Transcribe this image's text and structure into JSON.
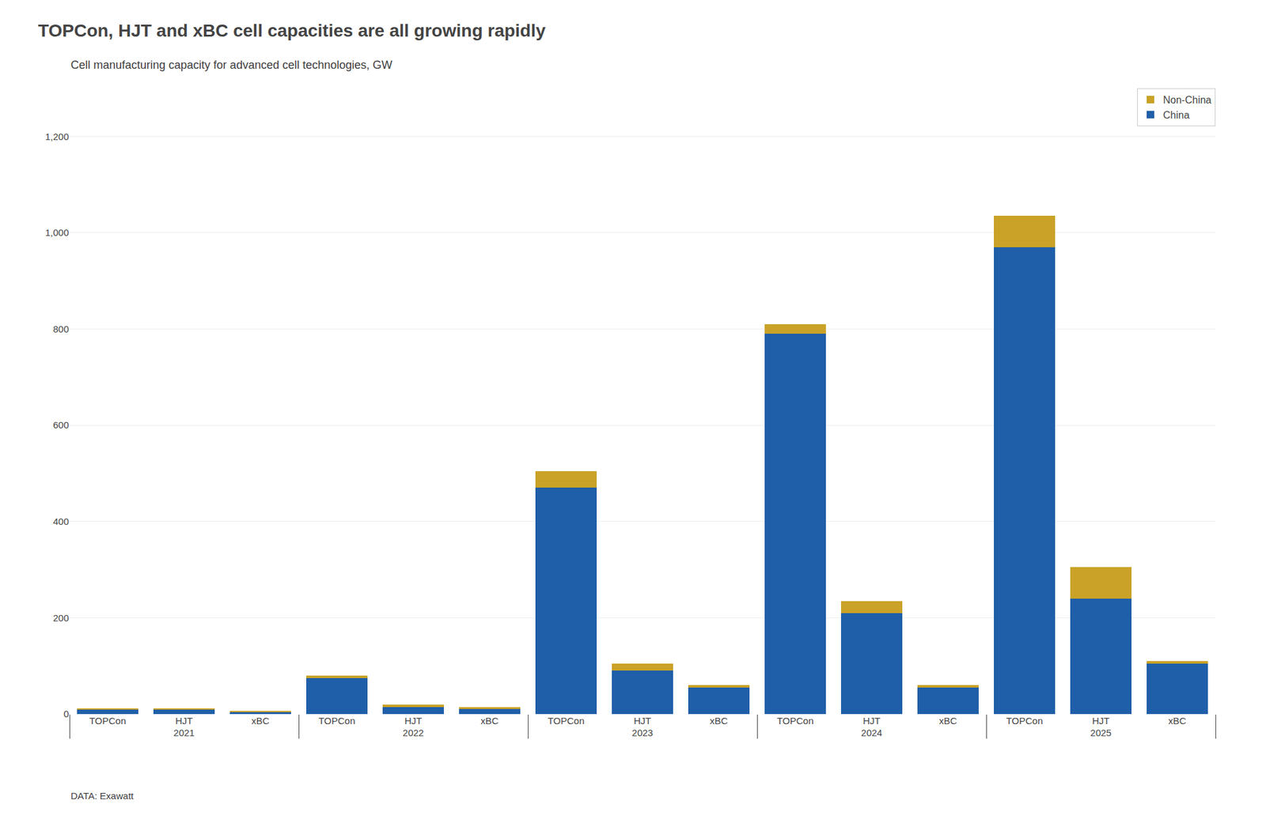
{
  "chart_data": {
    "type": "bar",
    "title": "TOPCon, HJT and xBC cell capacities are all growing rapidly",
    "subtitle": "Cell manufacturing capacity for advanced cell technologies, GW",
    "footer": "DATA: Exawatt",
    "groups": [
      "2021",
      "2022",
      "2023",
      "2024",
      "2025"
    ],
    "categories": [
      "TOPCon",
      "HJT",
      "xBC",
      "TOPCon",
      "HJT",
      "xBC",
      "TOPCon",
      "HJT",
      "xBC",
      "TOPCon",
      "HJT",
      "xBC",
      "TOPCon",
      "HJT",
      "xBC"
    ],
    "series": [
      {
        "name": "China",
        "color": "#1F5EA8",
        "values": [
          10,
          10,
          5,
          75,
          15,
          10,
          470,
          90,
          55,
          790,
          210,
          55,
          970,
          240,
          105
        ]
      },
      {
        "name": "Non-China",
        "color": "#C9A227",
        "values": [
          2,
          2,
          2,
          5,
          5,
          5,
          35,
          15,
          5,
          20,
          25,
          5,
          65,
          65,
          5
        ]
      }
    ],
    "stacked": true,
    "ylim": [
      0,
      1300
    ],
    "yticks": [
      0,
      200,
      400,
      600,
      800,
      {
        "value": 1000,
        "label": "1,000"
      },
      {
        "value": 1200,
        "label": "1,200"
      }
    ],
    "grid": true,
    "legend": "upper right"
  }
}
